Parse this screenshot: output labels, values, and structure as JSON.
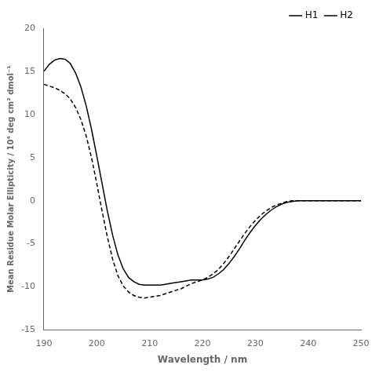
{
  "chart_data": {
    "type": "line",
    "xlabel": "Wavelength / nm",
    "ylabel": "Mean Residue Molar Ellipticity / 10⁴ deg cm² dmol⁻¹",
    "x": [
      190,
      191,
      192,
      193,
      194,
      195,
      196,
      197,
      198,
      199,
      200,
      201,
      202,
      203,
      204,
      205,
      206,
      207,
      208,
      209,
      210,
      211,
      212,
      213,
      214,
      215,
      216,
      217,
      218,
      219,
      220,
      221,
      222,
      223,
      224,
      225,
      226,
      227,
      228,
      229,
      230,
      231,
      232,
      233,
      234,
      235,
      236,
      237,
      238,
      239,
      240,
      241,
      242,
      243,
      244,
      245,
      246,
      247,
      248,
      249,
      250
    ],
    "series": [
      {
        "name": "H1",
        "color": "#000000",
        "line_style": "solid",
        "values": [
          15.0,
          15.8,
          16.3,
          16.5,
          16.4,
          15.9,
          14.8,
          13.2,
          11.0,
          8.3,
          5.2,
          2.0,
          -1.2,
          -4.0,
          -6.3,
          -7.9,
          -8.9,
          -9.4,
          -9.7,
          -9.8,
          -9.8,
          -9.8,
          -9.8,
          -9.7,
          -9.6,
          -9.5,
          -9.4,
          -9.3,
          -9.2,
          -9.2,
          -9.2,
          -9.1,
          -8.9,
          -8.5,
          -8.0,
          -7.3,
          -6.5,
          -5.6,
          -4.6,
          -3.7,
          -2.9,
          -2.2,
          -1.6,
          -1.1,
          -0.7,
          -0.4,
          -0.2,
          -0.1,
          0.0,
          0.0,
          0.0,
          0.0,
          0.0,
          0.0,
          0.0,
          0.0,
          0.0,
          0.0,
          0.0,
          0.0,
          0.0
        ]
      },
      {
        "name": "H2",
        "color": "#000000",
        "line_style": "dashed",
        "values": [
          13.5,
          13.3,
          13.1,
          12.8,
          12.4,
          11.8,
          10.8,
          9.4,
          7.5,
          5.0,
          2.0,
          -1.2,
          -4.2,
          -6.8,
          -8.7,
          -9.9,
          -10.6,
          -11.0,
          -11.2,
          -11.3,
          -11.2,
          -11.1,
          -11.0,
          -10.8,
          -10.6,
          -10.4,
          -10.2,
          -9.9,
          -9.6,
          -9.4,
          -9.2,
          -8.9,
          -8.5,
          -8.0,
          -7.3,
          -6.5,
          -5.6,
          -4.7,
          -3.8,
          -3.0,
          -2.3,
          -1.7,
          -1.2,
          -0.8,
          -0.5,
          -0.3,
          -0.1,
          0.0,
          0.0,
          0.0,
          0.0,
          0.0,
          0.0,
          0.0,
          0.0,
          0.0,
          0.0,
          0.0,
          0.0,
          0.0,
          0.0
        ]
      }
    ],
    "xlim": [
      190,
      250
    ],
    "xticks": [
      190,
      200,
      210,
      220,
      230,
      240,
      250
    ],
    "ylim": [
      -15,
      20
    ],
    "yticks": [
      -15,
      -10,
      -5,
      0,
      5,
      10,
      15,
      20
    ],
    "grid": false,
    "legend": "upper right"
  }
}
